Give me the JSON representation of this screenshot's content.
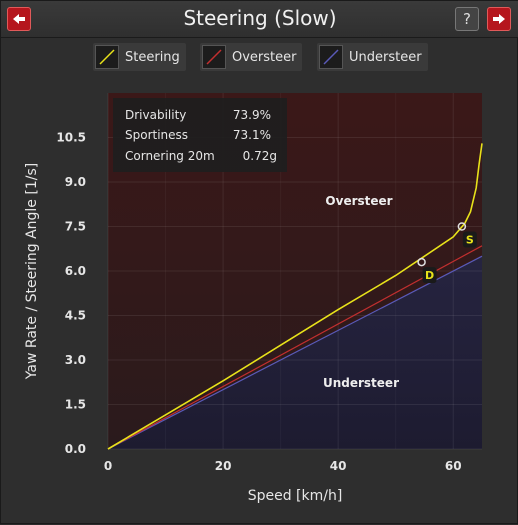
{
  "window": {
    "title": "Steering (Slow)",
    "back_icon": "arrow-left-icon",
    "help_icon": "question-mark-icon",
    "next_icon": "arrow-right-icon"
  },
  "legend": [
    {
      "label": "Steering",
      "color": "#e8e21a"
    },
    {
      "label": "Oversteer",
      "color": "#c22f2f"
    },
    {
      "label": "Understeer",
      "color": "#5a5ab8"
    }
  ],
  "stats": {
    "drivability_label": "Drivability",
    "drivability_value": "73.9%",
    "sportiness_label": "Sportiness",
    "sportiness_value": "73.1%",
    "cornering_label": "Cornering 20m",
    "cornering_value": "0.72g"
  },
  "chart_data": {
    "type": "line",
    "xlabel": "Speed [km/h]",
    "ylabel": "Yaw Rate / Steering Angle [1/s]",
    "xlim": [
      0,
      65
    ],
    "ylim": [
      0,
      12
    ],
    "xticks": [
      0,
      20,
      40,
      60
    ],
    "yticks": [
      0.0,
      1.5,
      3.0,
      4.5,
      6.0,
      7.5,
      9.0,
      10.5
    ],
    "ytick_labels": [
      "0.0",
      "1.5",
      "3.0",
      "4.5",
      "6.0",
      "7.5",
      "9.0",
      "10.5"
    ],
    "grid": true,
    "region_labels": {
      "upper": "Oversteer",
      "lower": "Understeer"
    },
    "series": [
      {
        "name": "Steering",
        "x": [
          0,
          10,
          20,
          30,
          40,
          50,
          55,
          60,
          62,
          63,
          64,
          64.5,
          65
        ],
        "y": [
          0,
          1.15,
          2.3,
          3.5,
          4.7,
          5.85,
          6.5,
          7.15,
          7.6,
          8.0,
          8.8,
          9.6,
          10.3
        ]
      },
      {
        "name": "Oversteer",
        "x": [
          0,
          65
        ],
        "y": [
          0,
          6.85
        ]
      },
      {
        "name": "Understeer",
        "x": [
          0,
          65
        ],
        "y": [
          0,
          6.5
        ]
      }
    ],
    "markers": [
      {
        "label": "D",
        "x": 54.5,
        "y": 6.3
      },
      {
        "label": "S",
        "x": 61.5,
        "y": 7.5
      }
    ]
  }
}
